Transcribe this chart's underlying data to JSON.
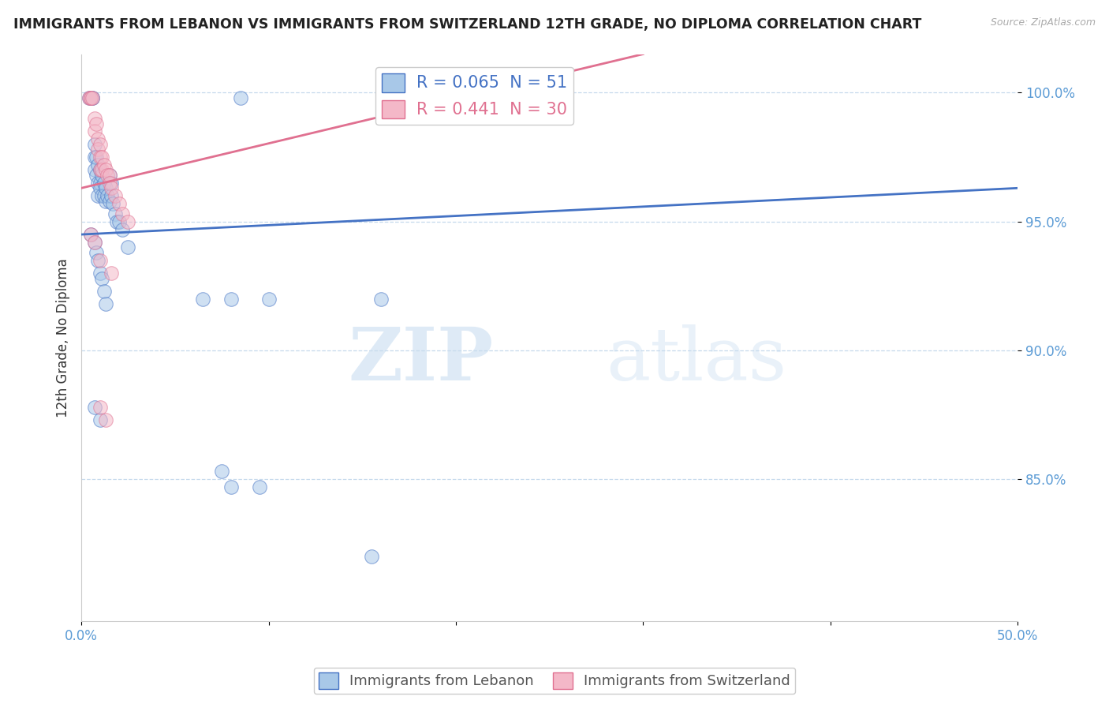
{
  "title": "IMMIGRANTS FROM LEBANON VS IMMIGRANTS FROM SWITZERLAND 12TH GRADE, NO DIPLOMA CORRELATION CHART",
  "source_text": "Source: ZipAtlas.com",
  "xlabel_legend1": "Immigrants from Lebanon",
  "xlabel_legend2": "Immigrants from Switzerland",
  "ylabel": "12th Grade, No Diploma",
  "xlim": [
    0.0,
    0.5
  ],
  "ylim": [
    0.795,
    1.015
  ],
  "xticks": [
    0.0,
    0.1,
    0.2,
    0.3,
    0.4,
    0.5
  ],
  "xticklabels": [
    "0.0%",
    "",
    "",
    "",
    "",
    "50.0%"
  ],
  "yticks": [
    0.85,
    0.9,
    0.95,
    1.0
  ],
  "yticklabels": [
    "85.0%",
    "90.0%",
    "95.0%",
    "100.0%"
  ],
  "R_blue": 0.065,
  "N_blue": 51,
  "R_pink": 0.441,
  "N_pink": 30,
  "color_blue": "#a8c8e8",
  "color_pink": "#f4b8c8",
  "line_blue": "#4472c4",
  "line_pink": "#e07090",
  "tick_color": "#5b9bd5",
  "watermark_zip": "ZIP",
  "watermark_atlas": "atlas",
  "blue_dots": [
    [
      0.004,
      0.998
    ],
    [
      0.005,
      0.998
    ],
    [
      0.006,
      0.998
    ],
    [
      0.006,
      0.998
    ],
    [
      0.007,
      0.98
    ],
    [
      0.007,
      0.975
    ],
    [
      0.007,
      0.97
    ],
    [
      0.008,
      0.975
    ],
    [
      0.008,
      0.968
    ],
    [
      0.009,
      0.972
    ],
    [
      0.009,
      0.965
    ],
    [
      0.009,
      0.96
    ],
    [
      0.01,
      0.97
    ],
    [
      0.01,
      0.965
    ],
    [
      0.01,
      0.963
    ],
    [
      0.011,
      0.968
    ],
    [
      0.011,
      0.96
    ],
    [
      0.012,
      0.965
    ],
    [
      0.012,
      0.96
    ],
    [
      0.013,
      0.963
    ],
    [
      0.013,
      0.958
    ],
    [
      0.014,
      0.96
    ],
    [
      0.015,
      0.968
    ],
    [
      0.015,
      0.958
    ],
    [
      0.016,
      0.965
    ],
    [
      0.016,
      0.96
    ],
    [
      0.017,
      0.957
    ],
    [
      0.018,
      0.953
    ],
    [
      0.019,
      0.95
    ],
    [
      0.02,
      0.95
    ],
    [
      0.022,
      0.947
    ],
    [
      0.025,
      0.94
    ],
    [
      0.005,
      0.945
    ],
    [
      0.007,
      0.942
    ],
    [
      0.008,
      0.938
    ],
    [
      0.009,
      0.935
    ],
    [
      0.01,
      0.93
    ],
    [
      0.011,
      0.928
    ],
    [
      0.012,
      0.923
    ],
    [
      0.013,
      0.918
    ],
    [
      0.007,
      0.878
    ],
    [
      0.01,
      0.873
    ],
    [
      0.065,
      0.92
    ],
    [
      0.08,
      0.92
    ],
    [
      0.1,
      0.92
    ],
    [
      0.16,
      0.92
    ],
    [
      0.075,
      0.853
    ],
    [
      0.08,
      0.847
    ],
    [
      0.095,
      0.847
    ],
    [
      0.155,
      0.82
    ],
    [
      0.085,
      0.998
    ]
  ],
  "pink_dots": [
    [
      0.004,
      0.998
    ],
    [
      0.005,
      0.998
    ],
    [
      0.005,
      0.998
    ],
    [
      0.006,
      0.998
    ],
    [
      0.007,
      0.99
    ],
    [
      0.007,
      0.985
    ],
    [
      0.008,
      0.988
    ],
    [
      0.009,
      0.982
    ],
    [
      0.009,
      0.978
    ],
    [
      0.01,
      0.98
    ],
    [
      0.01,
      0.975
    ],
    [
      0.01,
      0.97
    ],
    [
      0.011,
      0.975
    ],
    [
      0.011,
      0.97
    ],
    [
      0.012,
      0.972
    ],
    [
      0.013,
      0.97
    ],
    [
      0.014,
      0.968
    ],
    [
      0.015,
      0.968
    ],
    [
      0.015,
      0.965
    ],
    [
      0.016,
      0.963
    ],
    [
      0.018,
      0.96
    ],
    [
      0.02,
      0.957
    ],
    [
      0.022,
      0.953
    ],
    [
      0.025,
      0.95
    ],
    [
      0.005,
      0.945
    ],
    [
      0.007,
      0.942
    ],
    [
      0.01,
      0.935
    ],
    [
      0.016,
      0.93
    ],
    [
      0.01,
      0.878
    ],
    [
      0.013,
      0.873
    ]
  ],
  "blue_line_x": [
    0.0,
    0.5
  ],
  "blue_line_y": [
    0.945,
    0.963
  ],
  "pink_line_x": [
    0.0,
    0.3
  ],
  "pink_line_y": [
    0.963,
    1.015
  ]
}
